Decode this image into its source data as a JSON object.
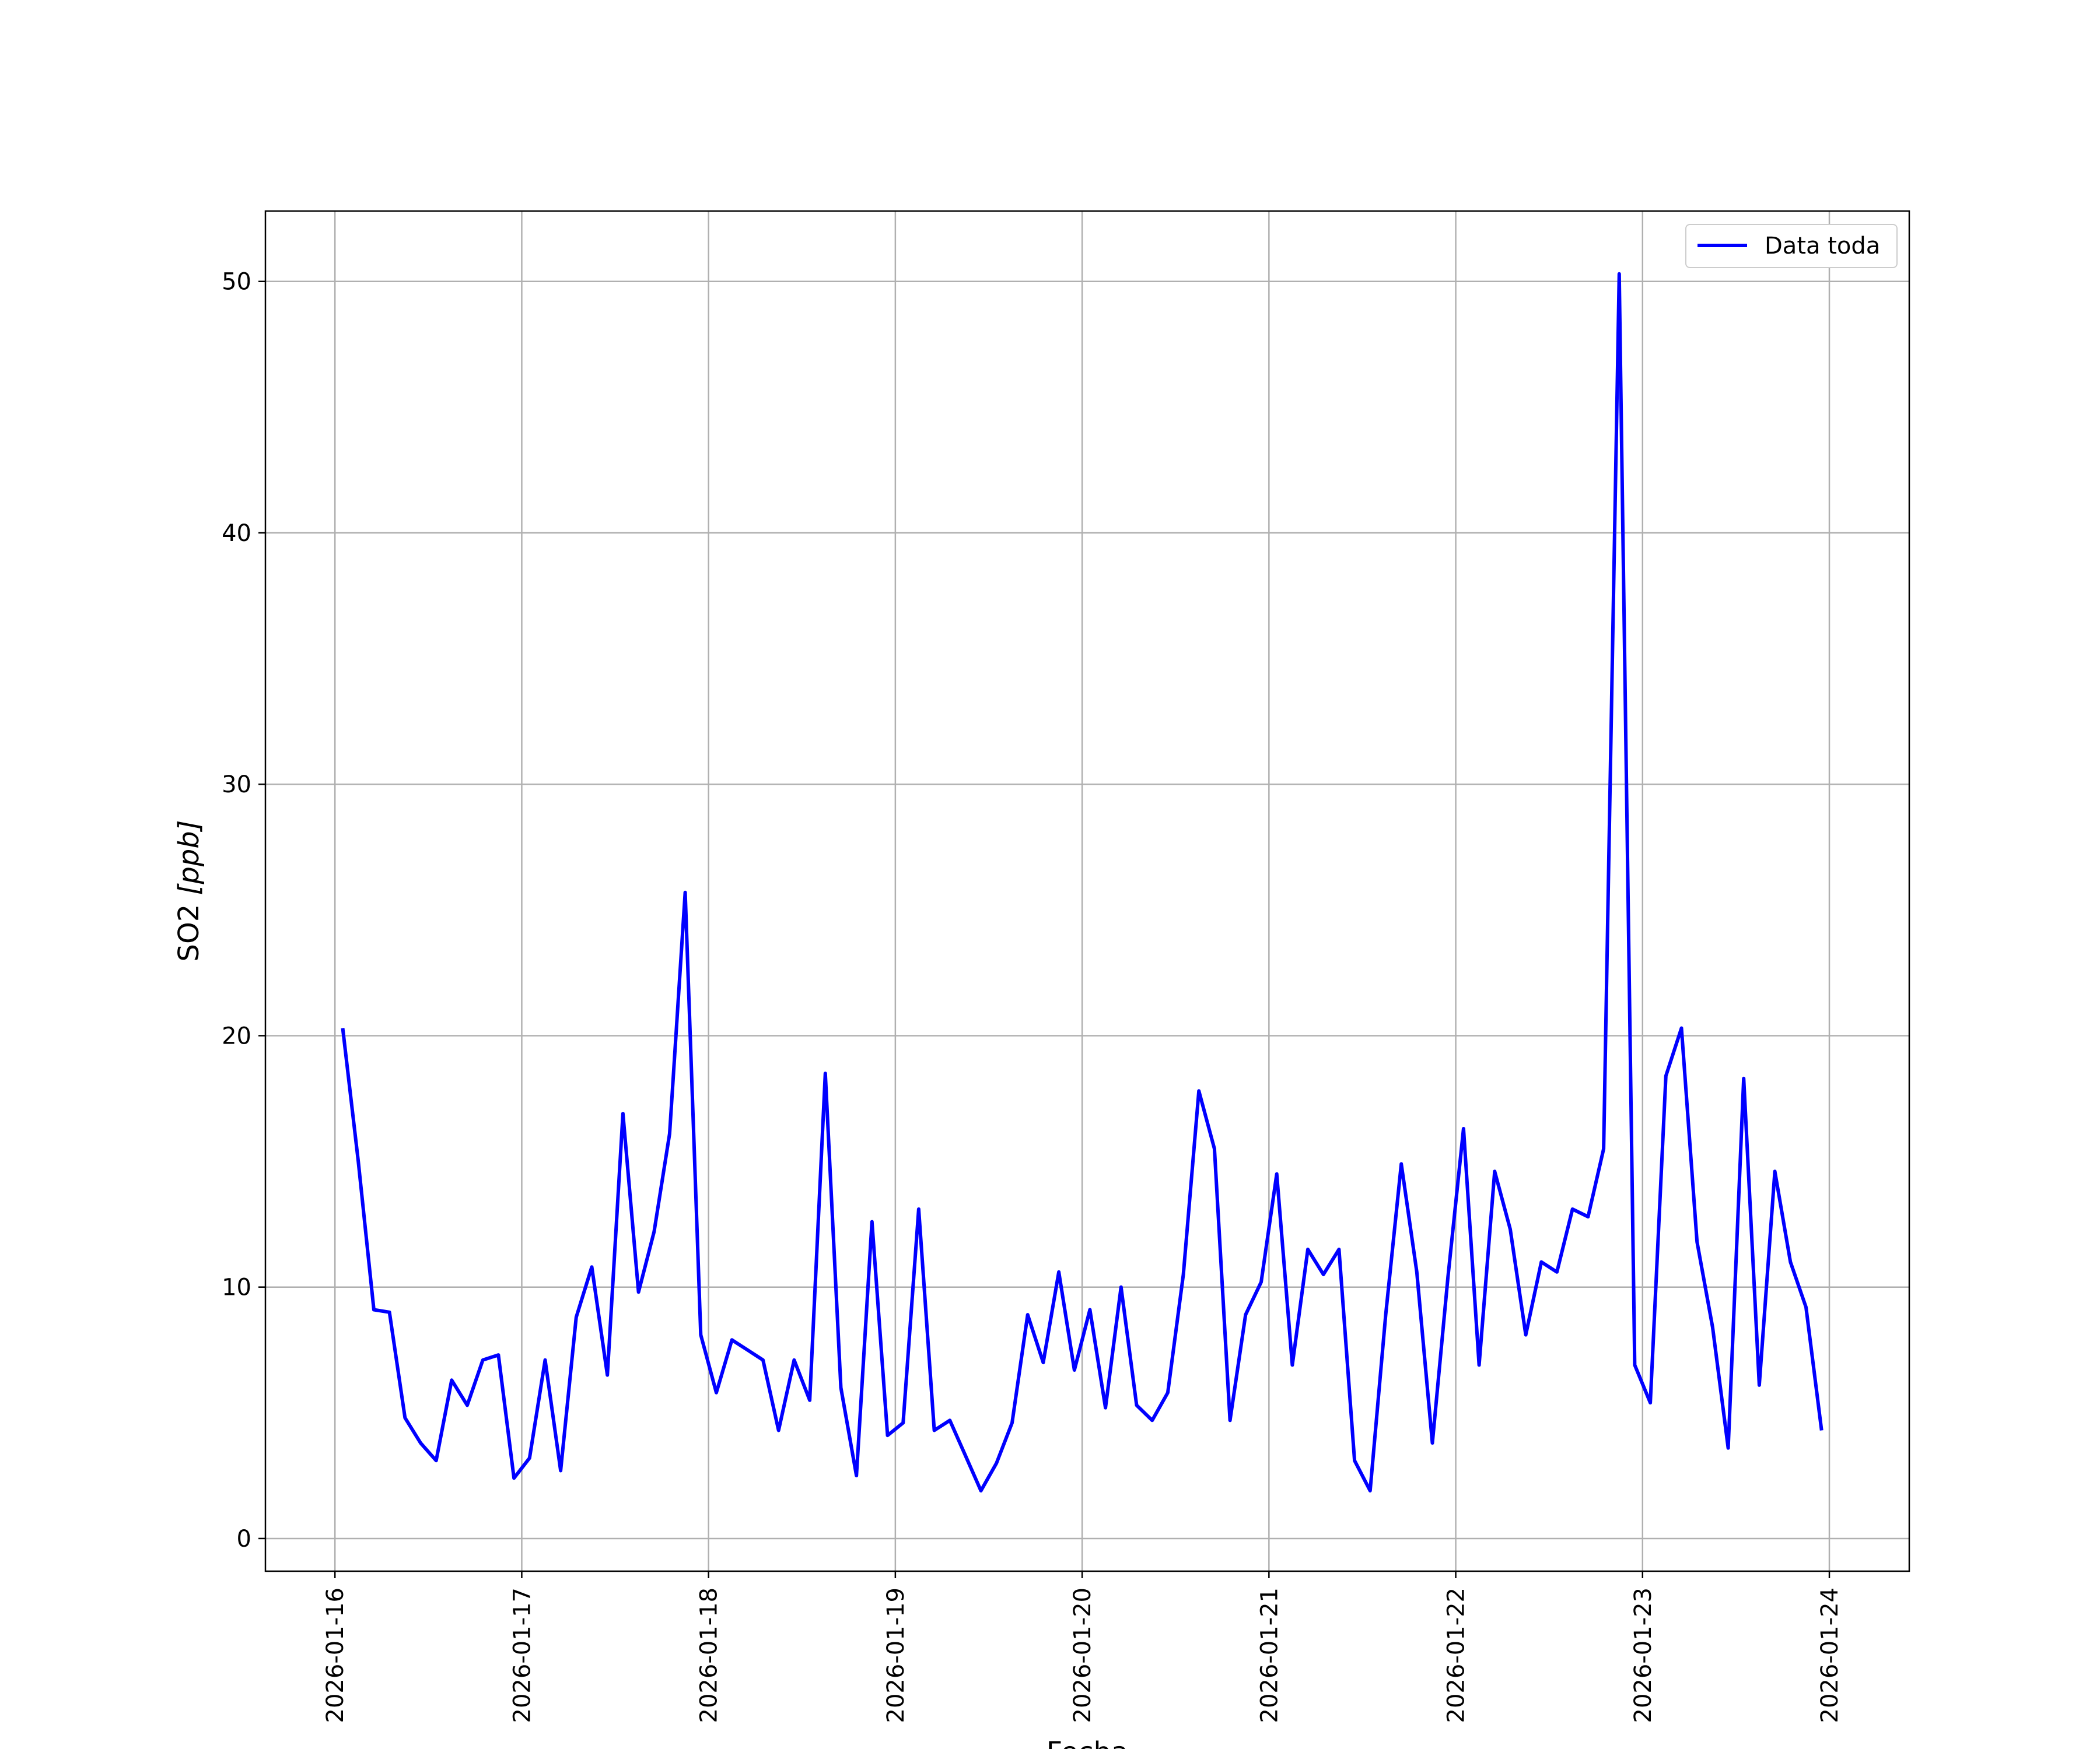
{
  "chart_data": {
    "type": "line",
    "title": "",
    "xlabel": "Fecha",
    "ylabel_main": "SO2 ",
    "ylabel_unit": "[ppb]",
    "ylim": [
      -1.3,
      52.8
    ],
    "xlim": [
      "2026-01-15T15:04",
      "2026-01-24T10:16"
    ],
    "grid": true,
    "legend_position": "top-right",
    "yticks": [
      0,
      10,
      20,
      30,
      40,
      50
    ],
    "xticks": [
      "2026-01-16",
      "2026-01-17",
      "2026-01-18",
      "2026-01-19",
      "2026-01-20",
      "2026-01-21",
      "2026-01-22",
      "2026-01-23",
      "2026-01-24"
    ],
    "series": [
      {
        "name": "Data toda",
        "color": "#0000ff",
        "points": [
          [
            "2026-01-16T01:00",
            20.3
          ],
          [
            "2026-01-16T03:00",
            15.0
          ],
          [
            "2026-01-16T05:00",
            9.1
          ],
          [
            "2026-01-16T07:00",
            9.0
          ],
          [
            "2026-01-16T09:00",
            4.8
          ],
          [
            "2026-01-16T11:00",
            3.8
          ],
          [
            "2026-01-16T13:00",
            3.1
          ],
          [
            "2026-01-16T15:00",
            6.3
          ],
          [
            "2026-01-16T17:00",
            5.3
          ],
          [
            "2026-01-16T19:00",
            7.1
          ],
          [
            "2026-01-16T21:00",
            7.3
          ],
          [
            "2026-01-16T23:00",
            2.4
          ],
          [
            "2026-01-17T01:00",
            3.2
          ],
          [
            "2026-01-17T03:00",
            7.1
          ],
          [
            "2026-01-17T05:00",
            2.7
          ],
          [
            "2026-01-17T07:00",
            8.8
          ],
          [
            "2026-01-17T09:00",
            10.8
          ],
          [
            "2026-01-17T11:00",
            6.5
          ],
          [
            "2026-01-17T13:00",
            16.9
          ],
          [
            "2026-01-17T15:00",
            9.8
          ],
          [
            "2026-01-17T17:00",
            12.2
          ],
          [
            "2026-01-17T19:00",
            16.1
          ],
          [
            "2026-01-17T21:00",
            25.7
          ],
          [
            "2026-01-17T23:00",
            8.1
          ],
          [
            "2026-01-18T01:00",
            5.8
          ],
          [
            "2026-01-18T03:00",
            7.9
          ],
          [
            "2026-01-18T05:00",
            7.5
          ],
          [
            "2026-01-18T07:00",
            7.1
          ],
          [
            "2026-01-18T09:00",
            4.3
          ],
          [
            "2026-01-18T11:00",
            7.1
          ],
          [
            "2026-01-18T13:00",
            5.5
          ],
          [
            "2026-01-18T15:00",
            18.5
          ],
          [
            "2026-01-18T17:00",
            6.0
          ],
          [
            "2026-01-18T19:00",
            2.5
          ],
          [
            "2026-01-18T21:00",
            12.6
          ],
          [
            "2026-01-18T23:00",
            4.1
          ],
          [
            "2026-01-19T01:00",
            4.6
          ],
          [
            "2026-01-19T03:00",
            13.1
          ],
          [
            "2026-01-19T05:00",
            4.3
          ],
          [
            "2026-01-19T07:00",
            4.7
          ],
          [
            "2026-01-19T09:00",
            3.3
          ],
          [
            "2026-01-19T11:00",
            1.9
          ],
          [
            "2026-01-19T13:00",
            3.0
          ],
          [
            "2026-01-19T15:00",
            4.6
          ],
          [
            "2026-01-19T17:00",
            8.9
          ],
          [
            "2026-01-19T19:00",
            7.0
          ],
          [
            "2026-01-19T21:00",
            10.6
          ],
          [
            "2026-01-19T23:00",
            6.7
          ],
          [
            "2026-01-20T01:00",
            9.1
          ],
          [
            "2026-01-20T03:00",
            5.2
          ],
          [
            "2026-01-20T05:00",
            10.0
          ],
          [
            "2026-01-20T07:00",
            5.3
          ],
          [
            "2026-01-20T09:00",
            4.7
          ],
          [
            "2026-01-20T11:00",
            5.8
          ],
          [
            "2026-01-20T13:00",
            10.5
          ],
          [
            "2026-01-20T15:00",
            17.8
          ],
          [
            "2026-01-20T17:00",
            15.5
          ],
          [
            "2026-01-20T19:00",
            4.7
          ],
          [
            "2026-01-20T21:00",
            8.9
          ],
          [
            "2026-01-20T23:00",
            10.2
          ],
          [
            "2026-01-21T01:00",
            14.5
          ],
          [
            "2026-01-21T03:00",
            6.9
          ],
          [
            "2026-01-21T05:00",
            11.5
          ],
          [
            "2026-01-21T07:00",
            10.5
          ],
          [
            "2026-01-21T09:00",
            11.5
          ],
          [
            "2026-01-21T11:00",
            3.1
          ],
          [
            "2026-01-21T13:00",
            1.9
          ],
          [
            "2026-01-21T15:00",
            8.9
          ],
          [
            "2026-01-21T17:00",
            14.9
          ],
          [
            "2026-01-21T19:00",
            10.6
          ],
          [
            "2026-01-21T21:00",
            3.8
          ],
          [
            "2026-01-21T23:00",
            10.4
          ],
          [
            "2026-01-22T01:00",
            16.3
          ],
          [
            "2026-01-22T03:00",
            6.9
          ],
          [
            "2026-01-22T05:00",
            14.6
          ],
          [
            "2026-01-22T07:00",
            12.3
          ],
          [
            "2026-01-22T09:00",
            8.1
          ],
          [
            "2026-01-22T11:00",
            11.0
          ],
          [
            "2026-01-22T13:00",
            10.6
          ],
          [
            "2026-01-22T15:00",
            13.1
          ],
          [
            "2026-01-22T17:00",
            12.8
          ],
          [
            "2026-01-22T19:00",
            15.5
          ],
          [
            "2026-01-22T21:00",
            50.3
          ],
          [
            "2026-01-22T23:00",
            6.9
          ],
          [
            "2026-01-23T01:00",
            5.4
          ],
          [
            "2026-01-23T03:00",
            18.4
          ],
          [
            "2026-01-23T05:00",
            20.3
          ],
          [
            "2026-01-23T07:00",
            11.8
          ],
          [
            "2026-01-23T09:00",
            8.4
          ],
          [
            "2026-01-23T11:00",
            3.6
          ],
          [
            "2026-01-23T13:00",
            18.3
          ],
          [
            "2026-01-23T15:00",
            6.1
          ],
          [
            "2026-01-23T17:00",
            14.6
          ],
          [
            "2026-01-23T19:00",
            11.0
          ],
          [
            "2026-01-23T21:00",
            9.2
          ],
          [
            "2026-01-23T23:00",
            4.3
          ]
        ]
      }
    ]
  }
}
